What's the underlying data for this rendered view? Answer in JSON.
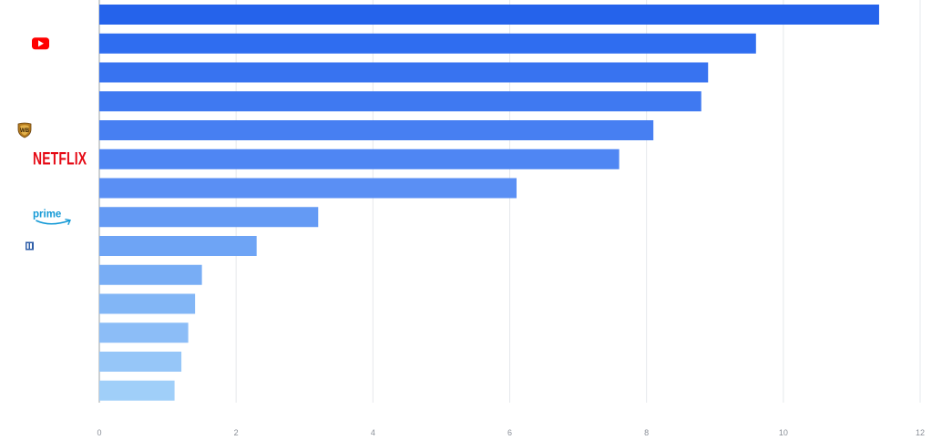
{
  "chart_data": {
    "type": "bar",
    "orientation": "horizontal",
    "categories": [
      "",
      "YouTube",
      "",
      "",
      "Warner Bros",
      "NETFLIX",
      "",
      "prime",
      "",
      "",
      "",
      "",
      "",
      ""
    ],
    "values": [
      11.4,
      9.6,
      8.9,
      8.8,
      8.1,
      7.6,
      6.1,
      3.2,
      2.3,
      1.5,
      1.4,
      1.3,
      1.2,
      1.1
    ],
    "xlim": [
      0,
      12
    ],
    "x_ticks": [
      "0",
      "2",
      "4",
      "6",
      "8",
      "10",
      "12"
    ],
    "grid": true,
    "bar_colors": [
      "#2563eb",
      "#2f6df0",
      "#3873f0",
      "#3f79f1",
      "#477ff2",
      "#4f86f3",
      "#5a8ff4",
      "#649af4",
      "#6ea4f5",
      "#78adf5",
      "#82b6f6",
      "#8cbdf7",
      "#96c6f8",
      "#a0cff9"
    ],
    "logos": {
      "youtube": {
        "label": "YouTube",
        "color": "#ff0000"
      },
      "warner": {
        "label": "Warner Bros",
        "color": "#b47b1e"
      },
      "netflix": {
        "label": "NETFLIX",
        "color": "#e50914"
      },
      "prime": {
        "label": "prime",
        "color": "#1399d6"
      },
      "blue_icon": {
        "label": "",
        "color": "#2f5ea8"
      }
    }
  }
}
